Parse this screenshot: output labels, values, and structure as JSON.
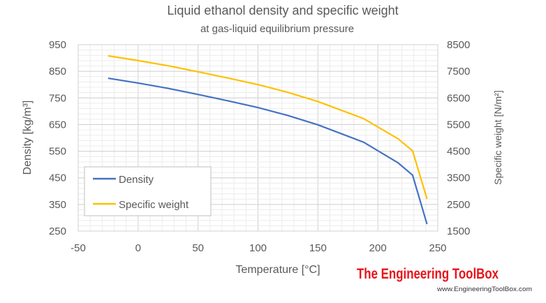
{
  "chart_data": {
    "type": "line",
    "title": "Liquid ethanol density and specific weight",
    "subtitle": "at gas-liquid equilibrium pressure",
    "xlabel": "Temperature [°C]",
    "ylabel": "Density [kg/m³]",
    "y2label": "Specific weight [N/m²]",
    "xlim": [
      -50,
      250
    ],
    "ylim": [
      250,
      950
    ],
    "y2lim": [
      1500,
      8500
    ],
    "xticks": [
      "-50",
      "0",
      "50",
      "100",
      "150",
      "200",
      "250"
    ],
    "yticks": [
      "250",
      "350",
      "450",
      "550",
      "650",
      "750",
      "850",
      "950"
    ],
    "y2ticks": [
      "1500",
      "2500",
      "3500",
      "4500",
      "5500",
      "6500",
      "7500",
      "8500"
    ],
    "grid": true,
    "legend_position": "bottom-left",
    "x": [
      -25,
      0,
      25,
      50,
      75,
      100,
      125,
      150,
      188,
      217,
      229,
      241
    ],
    "series": [
      {
        "name": "Density",
        "axis": "left",
        "color": "#4472C4",
        "values": [
          824,
          806,
          786,
          763,
          739,
          714,
          684,
          649,
          584,
          506,
          460,
          276
        ]
      },
      {
        "name": "Specific weight",
        "axis": "right",
        "color": "#FFC000",
        "values": [
          8081,
          7904,
          7708,
          7483,
          7247,
          7002,
          6708,
          6365,
          5727,
          4962,
          4511,
          2707
        ]
      }
    ]
  },
  "watermark": {
    "brand": "The Engineering ToolBox",
    "url": "www.EngineeringToolBox.com"
  }
}
